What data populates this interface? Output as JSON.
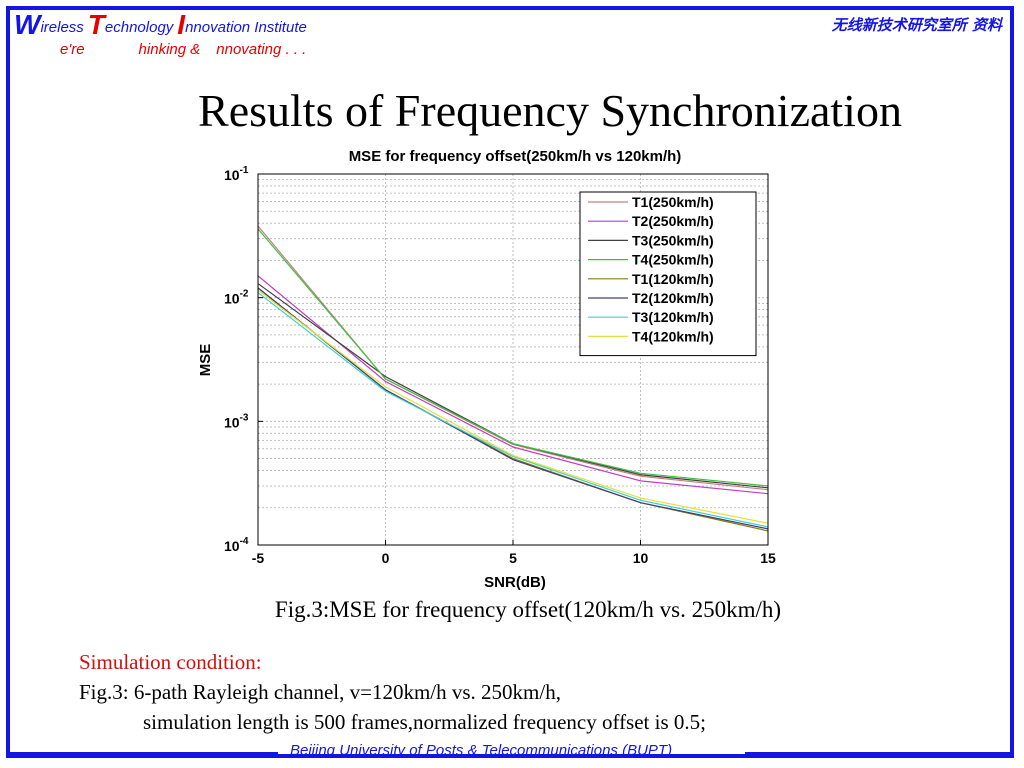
{
  "header": {
    "line1": {
      "w": "W",
      "w_rest": "ireless",
      "t": "T",
      "t_rest": "echnology",
      "i": "I",
      "i_rest": "nnovation Institute"
    },
    "line2": {
      "w_rest": "e're",
      "t_rest": "hinking &",
      "i_rest": "nnovating . . ."
    },
    "right": "无线新技术研究室所 资料"
  },
  "title": "Results of Frequency Synchronization",
  "chart_data": {
    "type": "line",
    "title": "MSE for frequency offset(250km/h vs 120km/h)",
    "xlabel": "SNR(dB)",
    "ylabel": "MSE",
    "x": [
      -5,
      0,
      5,
      10,
      15
    ],
    "xticks": [
      "-5",
      "0",
      "5",
      "10",
      "15"
    ],
    "xlim": [
      -5,
      15
    ],
    "ylim": [
      0.0001,
      0.1
    ],
    "yscale": "log",
    "yticks": [
      {
        "base": "10",
        "exp": "-1",
        "value": 0.1
      },
      {
        "base": "10",
        "exp": "-2",
        "value": 0.01
      },
      {
        "base": "10",
        "exp": "-3",
        "value": 0.001
      },
      {
        "base": "10",
        "exp": "-4",
        "value": 0.0001
      }
    ],
    "grid": true,
    "legend_position": "top-right",
    "series": [
      {
        "name": "T1(250km/h)",
        "color": "#c08080",
        "values": [
          0.038,
          0.0022,
          0.00065,
          0.00036,
          0.00028
        ]
      },
      {
        "name": "T2(250km/h)",
        "color": "#c040c0",
        "values": [
          0.015,
          0.0021,
          0.00062,
          0.00033,
          0.00026
        ]
      },
      {
        "name": "T3(250km/h)",
        "color": "#404040",
        "values": [
          0.013,
          0.0023,
          0.00066,
          0.00037,
          0.00029
        ]
      },
      {
        "name": "T4(250km/h)",
        "color": "#40c040",
        "values": [
          0.036,
          0.0022,
          0.00066,
          0.00038,
          0.0003
        ]
      },
      {
        "name": "T1(120km/h)",
        "color": "#808000",
        "values": [
          0.012,
          0.0018,
          0.0005,
          0.00022,
          0.00013
        ]
      },
      {
        "name": "T2(120km/h)",
        "color": "#404080",
        "values": [
          0.012,
          0.0018,
          0.00049,
          0.00022,
          0.000135
        ]
      },
      {
        "name": "T3(120km/h)",
        "color": "#40d0d0",
        "values": [
          0.011,
          0.00175,
          0.00052,
          0.00023,
          0.00014
        ]
      },
      {
        "name": "T4(120km/h)",
        "color": "#e0e040",
        "values": [
          0.0115,
          0.0019,
          0.00053,
          0.00024,
          0.00015
        ]
      }
    ]
  },
  "caption": "Fig.3:MSE for frequency offset(120km/h vs. 250km/h)",
  "condition": {
    "title": "Simulation condition:",
    "line1": "Fig.3: 6-path Rayleigh channel, v=120km/h vs. 250km/h,",
    "line2": "simulation length is 500 frames,normalized frequency offset  is 0.5;"
  },
  "footer": "Beijing University of Posts & Telecommunications (BUPT)"
}
